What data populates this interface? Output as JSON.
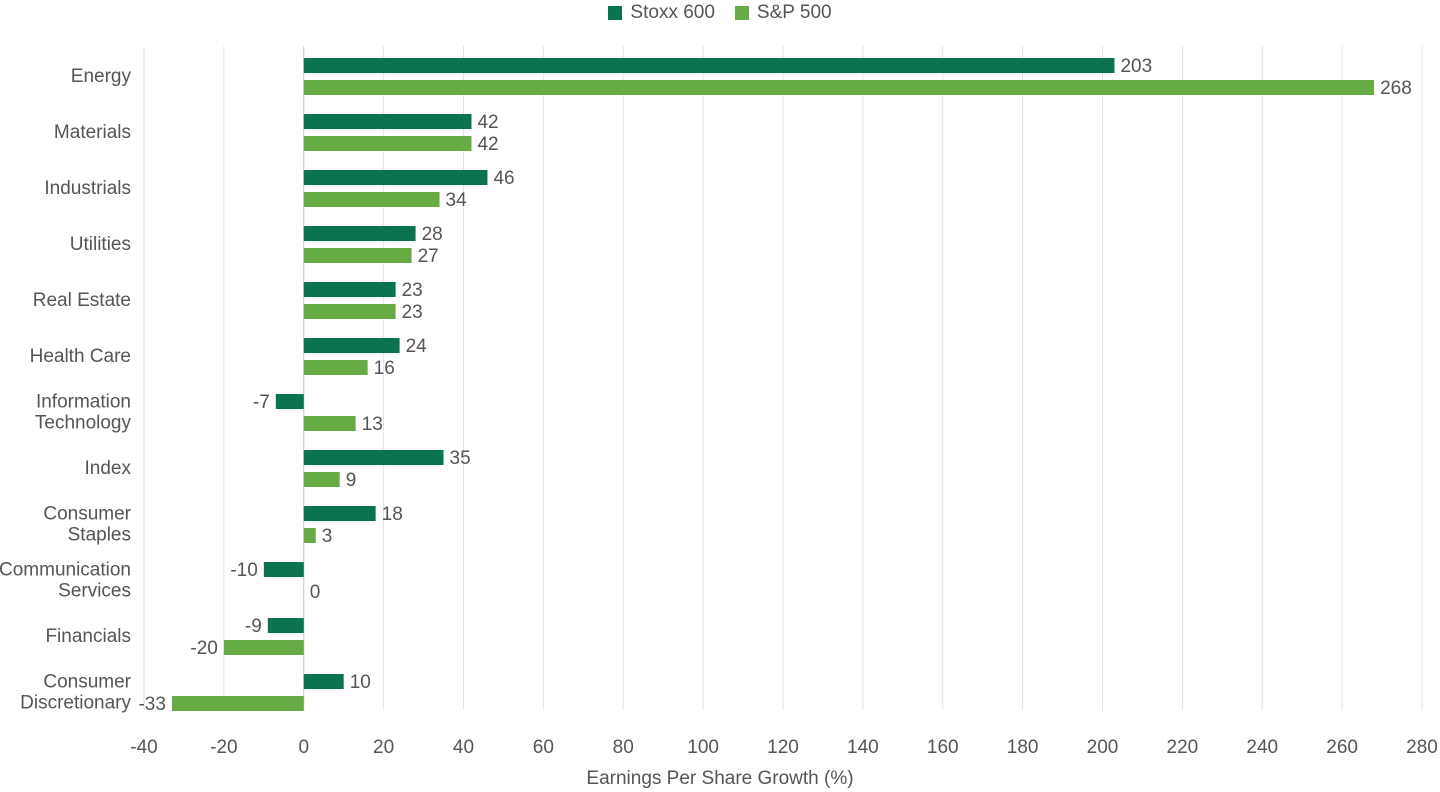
{
  "chart_data": {
    "type": "bar",
    "orientation": "horizontal",
    "categories": [
      "Energy",
      "Materials",
      "Industrials",
      "Utilities",
      "Real Estate",
      "Health Care",
      "Information Technology",
      "Index",
      "Consumer Staples",
      "Communication Services",
      "Financials",
      "Consumer Discretionary"
    ],
    "category_lines": [
      [
        "Energy"
      ],
      [
        "Materials"
      ],
      [
        "Industrials"
      ],
      [
        "Utilities"
      ],
      [
        "Real Estate"
      ],
      [
        "Health Care"
      ],
      [
        "Information",
        "Technology"
      ],
      [
        "Index"
      ],
      [
        "Consumer",
        "Staples"
      ],
      [
        "Communication",
        "Services"
      ],
      [
        "Financials"
      ],
      [
        "Consumer",
        "Discretionary"
      ]
    ],
    "series": [
      {
        "name": "Stoxx 600",
        "color": "#0b7350",
        "values": [
          203,
          42,
          46,
          28,
          23,
          24,
          -7,
          35,
          18,
          -10,
          -9,
          10
        ]
      },
      {
        "name": "S&P 500",
        "color": "#67ab45",
        "values": [
          268,
          42,
          34,
          27,
          23,
          16,
          13,
          9,
          3,
          0,
          -20,
          -33
        ]
      }
    ],
    "xlabel": "Earnings Per Share Growth (%)",
    "xlim": [
      -40,
      280
    ],
    "xticks": [
      -40,
      -20,
      0,
      20,
      40,
      60,
      80,
      100,
      120,
      140,
      160,
      180,
      200,
      220,
      240,
      260,
      280
    ],
    "grid": true,
    "legend_position": "top-center"
  }
}
